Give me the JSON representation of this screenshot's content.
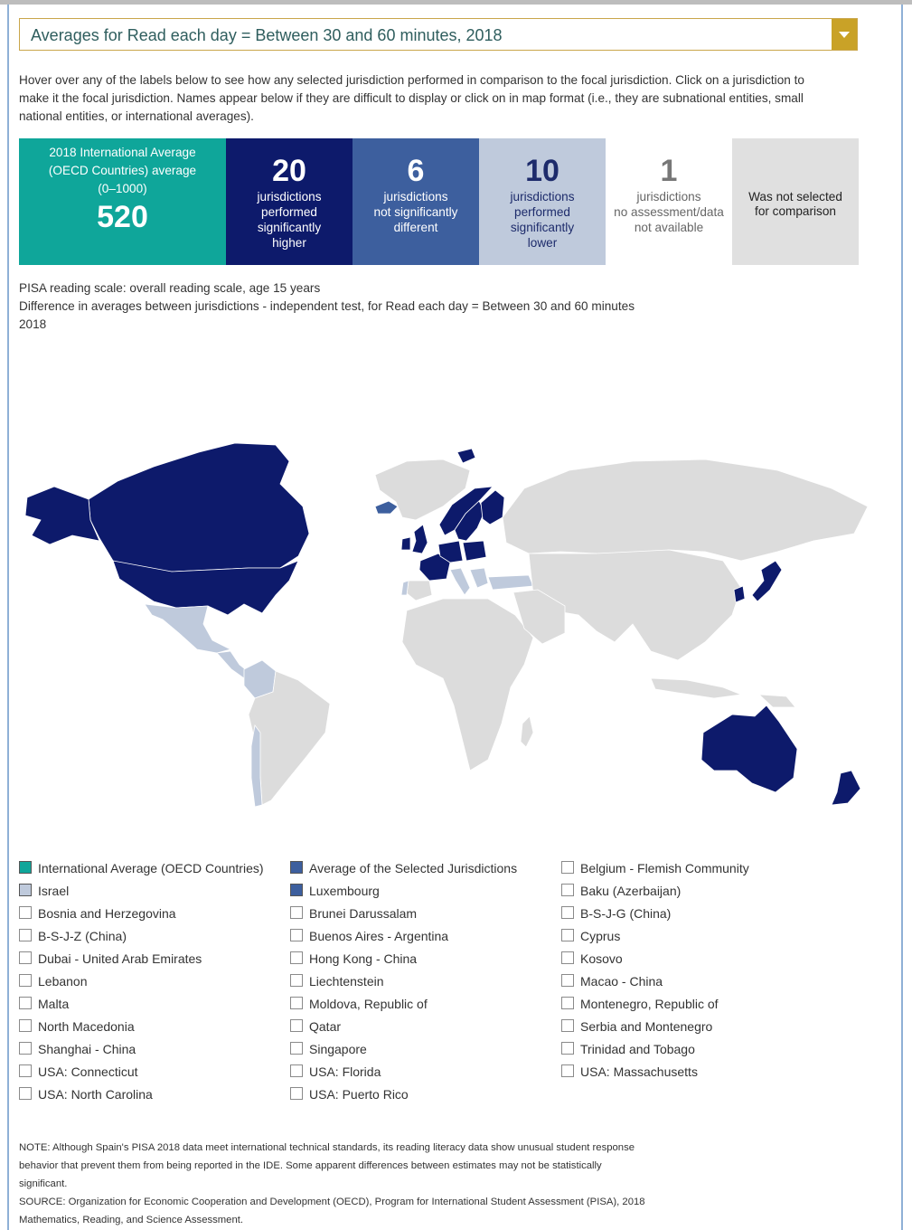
{
  "header": {
    "dropdown_value": "Averages for Read each day = Between 30 and 60 minutes, 2018"
  },
  "intro": "Hover over any of the labels below to see how any selected jurisdiction performed in comparison to the focal jurisdiction. Click on a jurisdiction to make it the focal jurisdiction. Names appear below if they are difficult to display or click on in map format (i.e., they are subnational entities, small national entities, or international averages).",
  "summary": {
    "average": {
      "line1": "2018 International Average",
      "line2": "(OECD Countries) average",
      "line3": "(0–1000)",
      "value": "520",
      "color": "#0fa69a"
    },
    "higher": {
      "count": "20",
      "line1": "jurisdictions",
      "line2": "performed",
      "line3": "significantly",
      "line4": "higher",
      "color": "#0d1a6b"
    },
    "same": {
      "count": "6",
      "line1": "jurisdictions",
      "line2": "not significantly",
      "line3": "different",
      "color": "#3d5f9e"
    },
    "lower": {
      "count": "10",
      "line1": "jurisdictions",
      "line2": "performed",
      "line3": "significantly",
      "line4": "lower",
      "color": "#bfcadc"
    },
    "na": {
      "count": "1",
      "line1": "jurisdictions",
      "line2": "no assessment/data",
      "line3": "not available"
    },
    "not_selected": {
      "line1": "Was not selected",
      "line2": "for comparison",
      "color": "#e0e0e0"
    }
  },
  "caption": {
    "line1": "PISA reading scale: overall reading scale, age 15 years",
    "line2": "Difference in averages between jurisdictions - independent test, for Read each day = Between 30 and 60 minutes",
    "line3": "2018"
  },
  "map_colors": {
    "higher": "#0d1a6b",
    "lower": "#bfcadc",
    "same": "#3d5f9e",
    "not_selected": "#dcdcdc"
  },
  "map_regions": {
    "higher": [
      "Canada",
      "United States",
      "Alaska",
      "United Kingdom",
      "Ireland",
      "France",
      "Germany",
      "Netherlands",
      "Poland",
      "Czech Republic",
      "Slovakia",
      "Norway",
      "Sweden",
      "Finland",
      "Japan",
      "Korea",
      "Australia",
      "New Zealand",
      "Svalbard"
    ],
    "same": [
      "Iceland"
    ],
    "lower": [
      "Mexico",
      "Colombia",
      "Chile",
      "Portugal",
      "Italy",
      "Slovenia",
      "Hungary",
      "Greece",
      "Turkey"
    ]
  },
  "legend": [
    {
      "label": "International Average (OECD Countries)",
      "fill": "#0fa69a"
    },
    {
      "label": "Average of the Selected Jurisdictions",
      "fill": "#3d5f9e"
    },
    {
      "label": "Belgium - Flemish Community",
      "fill": ""
    },
    {
      "label": "Israel",
      "fill": "#bfcadc"
    },
    {
      "label": "Luxembourg",
      "fill": "#3d5f9e"
    },
    {
      "label": "Baku (Azerbaijan)",
      "fill": ""
    },
    {
      "label": "Bosnia and Herzegovina",
      "fill": ""
    },
    {
      "label": "Brunei Darussalam",
      "fill": ""
    },
    {
      "label": "B-S-J-G (China)",
      "fill": ""
    },
    {
      "label": "B-S-J-Z (China)",
      "fill": ""
    },
    {
      "label": "Buenos Aires - Argentina",
      "fill": ""
    },
    {
      "label": "Cyprus",
      "fill": ""
    },
    {
      "label": "Dubai - United Arab Emirates",
      "fill": ""
    },
    {
      "label": "Hong Kong - China",
      "fill": ""
    },
    {
      "label": "Kosovo",
      "fill": ""
    },
    {
      "label": "Lebanon",
      "fill": ""
    },
    {
      "label": "Liechtenstein",
      "fill": ""
    },
    {
      "label": "Macao - China",
      "fill": ""
    },
    {
      "label": "Malta",
      "fill": ""
    },
    {
      "label": "Moldova, Republic of",
      "fill": ""
    },
    {
      "label": "Montenegro, Republic of",
      "fill": ""
    },
    {
      "label": "North Macedonia",
      "fill": ""
    },
    {
      "label": "Qatar",
      "fill": ""
    },
    {
      "label": "Serbia and Montenegro",
      "fill": ""
    },
    {
      "label": "Shanghai - China",
      "fill": ""
    },
    {
      "label": "Singapore",
      "fill": ""
    },
    {
      "label": "Trinidad and Tobago",
      "fill": ""
    },
    {
      "label": "USA: Connecticut",
      "fill": ""
    },
    {
      "label": "USA: Florida",
      "fill": ""
    },
    {
      "label": "USA: Massachusetts",
      "fill": ""
    },
    {
      "label": "USA: North Carolina",
      "fill": ""
    },
    {
      "label": "USA: Puerto Rico",
      "fill": ""
    }
  ],
  "note": {
    "line1": "NOTE: Although Spain's PISA 2018 data meet international technical standards, its reading literacy data show unusual student response",
    "line2": "behavior that prevent them from being reported in the IDE. Some apparent differences between estimates may not be statistically",
    "line3": "significant.",
    "line4": "SOURCE: Organization for Economic Cooperation and Development (OECD), Program for International Student Assessment (PISA), 2018",
    "line5": "Mathematics, Reading, and Science Assessment."
  }
}
